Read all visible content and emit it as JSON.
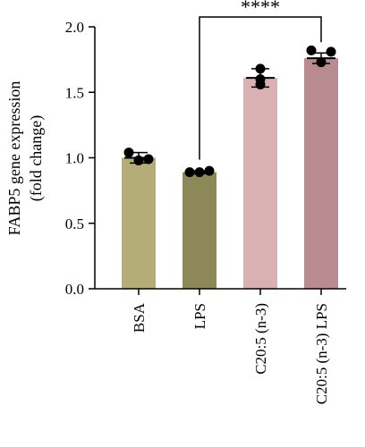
{
  "chart_data": {
    "type": "bar",
    "categories": [
      "BSA",
      "LPS",
      "C20:5 (n-3)",
      "C20:5 (n-3) LPS"
    ],
    "values": [
      1.0,
      0.89,
      1.61,
      1.76
    ],
    "errors": [
      0.04,
      0.01,
      0.07,
      0.04
    ],
    "points": [
      [
        1.04,
        0.98,
        0.99
      ],
      [
        0.89,
        0.89,
        0.9
      ],
      [
        1.68,
        1.56,
        1.6
      ],
      [
        1.82,
        1.73,
        1.81
      ]
    ],
    "bar_colors": [
      "#b5ad78",
      "#8c8858",
      "#d9b1b3",
      "#b78b90"
    ],
    "title": "",
    "xlabel": "",
    "ylabel_lines": [
      "FABP5 gene expression",
      "(fold change)"
    ],
    "ylim": [
      0,
      2.0
    ],
    "yticks": [
      "0.0",
      "0.5",
      "1.0",
      "1.5",
      "2.0"
    ],
    "significance": {
      "from": 1,
      "to": 3,
      "label": "****"
    }
  }
}
